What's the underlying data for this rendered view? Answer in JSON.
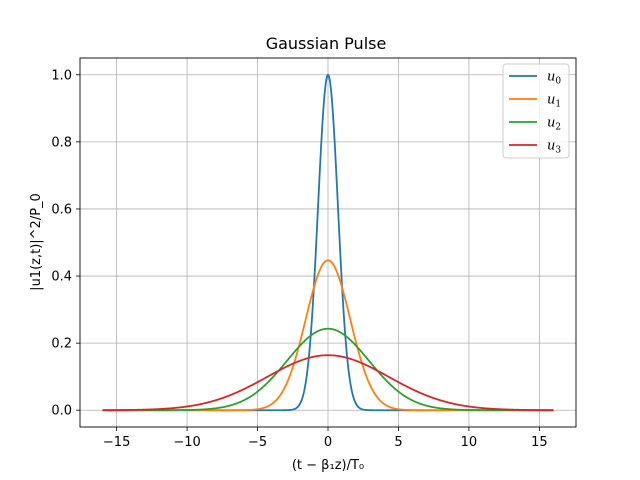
{
  "chart_data": {
    "type": "line",
    "title": "Gaussian Pulse",
    "xlabel": "(t − β₁z)/T₀",
    "ylabel": "|u1(z,t)|^2/P_0",
    "xlim": [
      -17.6,
      17.6
    ],
    "ylim": [
      -0.05,
      1.05
    ],
    "xticks": [
      -15,
      -10,
      -5,
      0,
      5,
      10,
      15
    ],
    "xtick_labels": [
      "−15",
      "−10",
      "−5",
      "0",
      "5",
      "10",
      "15"
    ],
    "yticks": [
      0.0,
      0.2,
      0.4,
      0.6,
      0.8,
      1.0
    ],
    "ytick_labels": [
      "0.0",
      "0.2",
      "0.4",
      "0.6",
      "0.8",
      "1.0"
    ],
    "grid": true,
    "legend_position": "top-right",
    "x_range": [
      -16,
      16
    ],
    "series": [
      {
        "name": "u0",
        "label_main": "u",
        "label_sub": "0",
        "peak": 1.0,
        "width": 0.707,
        "color": "#1f77b4"
      },
      {
        "name": "u1",
        "label_main": "u",
        "label_sub": "1",
        "peak": 0.447,
        "width": 1.58,
        "color": "#ff7f0e"
      },
      {
        "name": "u2",
        "label_main": "u",
        "label_sub": "2",
        "peak": 0.243,
        "width": 2.91,
        "color": "#2ca02c"
      },
      {
        "name": "u3",
        "label_main": "u",
        "label_sub": "3",
        "peak": 0.164,
        "width": 4.31,
        "color": "#d62728"
      }
    ]
  }
}
